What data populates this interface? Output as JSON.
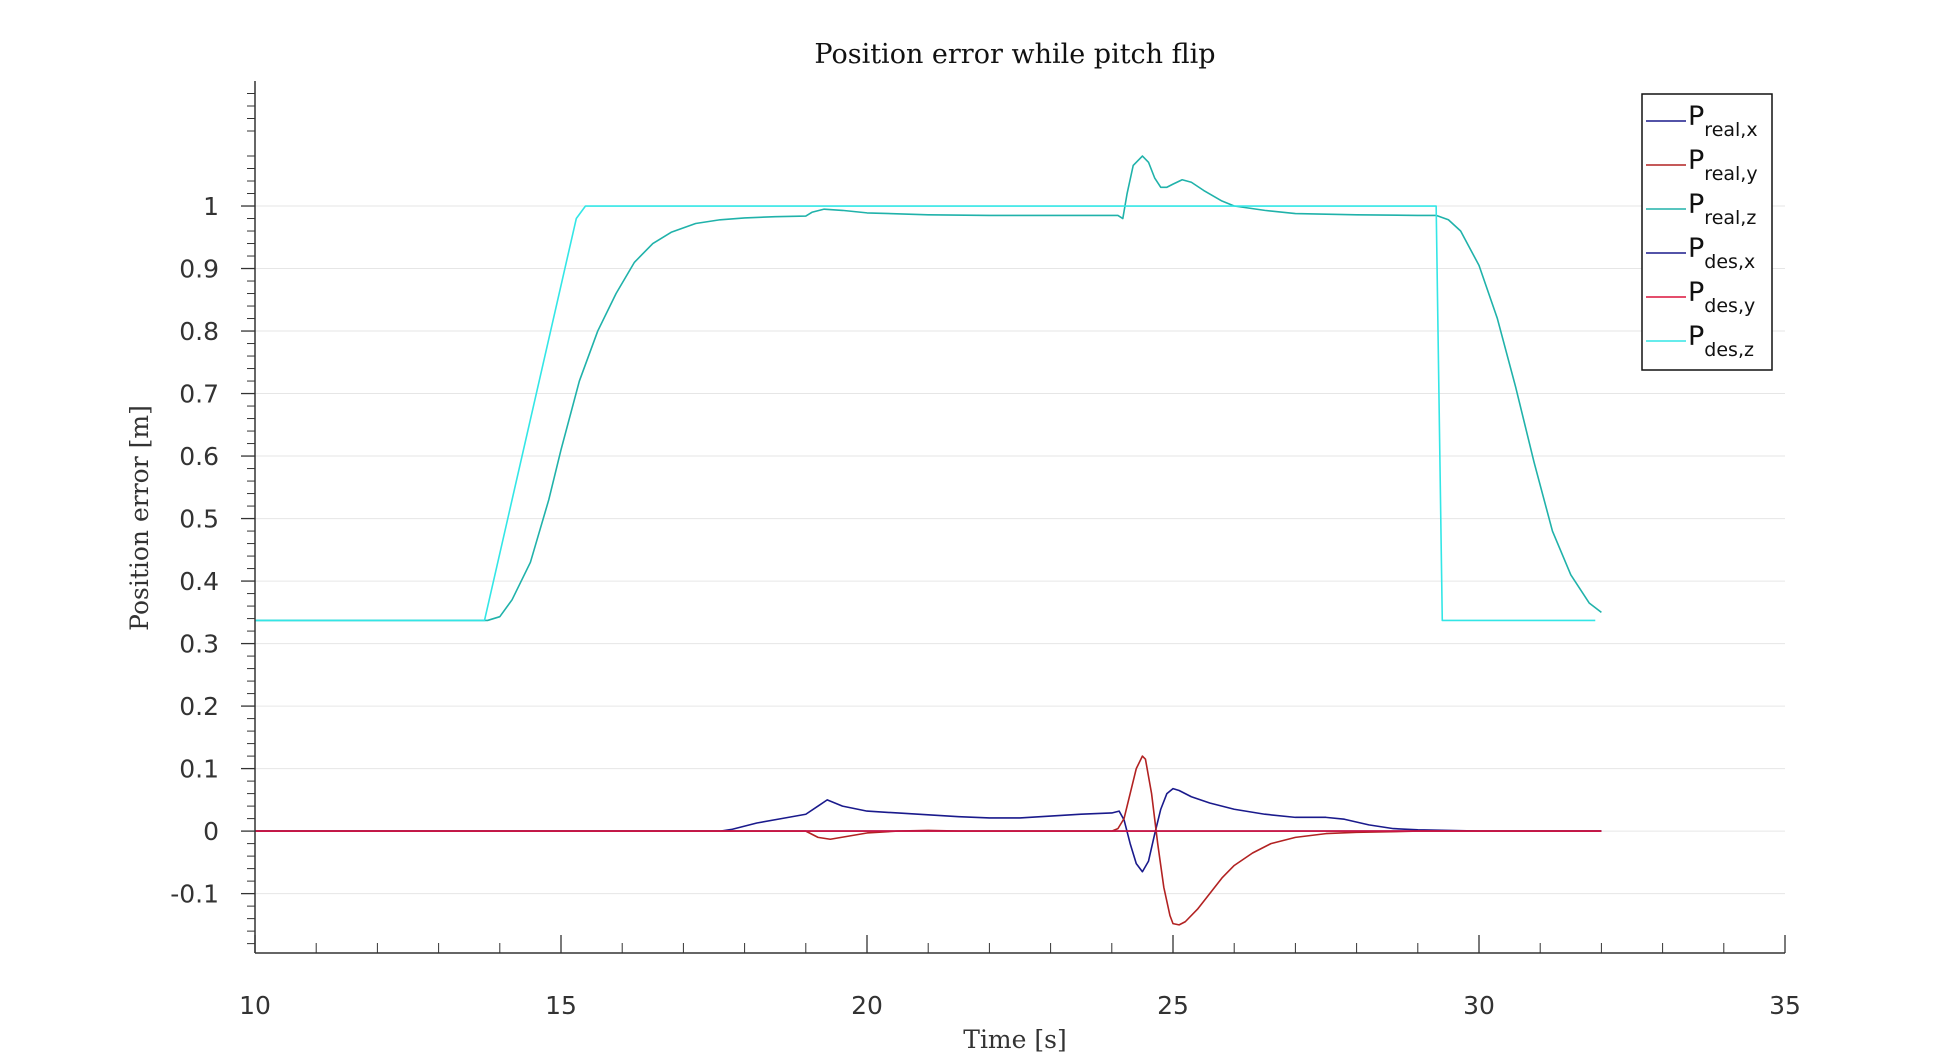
{
  "chart_data": {
    "type": "line",
    "title": "Position error while pitch flip",
    "xlabel": "Time [s]",
    "ylabel": "Position error [m]",
    "xlim": [
      10,
      35
    ],
    "ylim": [
      -0.195,
      1.2
    ],
    "xticks": [
      10,
      15,
      20,
      25,
      30,
      35
    ],
    "xtick_labels": [
      "10",
      "15",
      "20",
      "25",
      "30",
      "35"
    ],
    "yticks": [
      -0.1,
      0,
      0.1,
      0.2,
      0.3,
      0.4,
      0.5,
      0.6,
      0.7,
      0.8,
      0.9,
      1
    ],
    "ytick_labels": [
      "-0.1",
      "0",
      "0.1",
      "0.2",
      "0.3",
      "0.4",
      "0.5",
      "0.6",
      "0.7",
      "0.8",
      "0.9",
      "1"
    ],
    "grid": "horizontal",
    "legend_position": "top-right",
    "series": [
      {
        "name": "P",
        "subscript": "real,x",
        "color": "#1a1a8c",
        "x": [
          10,
          17.6,
          17.8,
          18.2,
          18.6,
          19.0,
          19.2,
          19.35,
          19.6,
          20.0,
          20.5,
          21.0,
          21.5,
          22.0,
          22.5,
          23.0,
          23.5,
          24.0,
          24.12,
          24.2,
          24.3,
          24.4,
          24.5,
          24.6,
          24.7,
          24.8,
          24.9,
          25.0,
          25.1,
          25.3,
          25.6,
          26.0,
          26.5,
          27.0,
          27.5,
          27.8,
          28.2,
          28.6,
          29.0,
          30.0,
          31.0,
          32.0
        ],
        "y": [
          0,
          0,
          0.003,
          0.013,
          0.02,
          0.027,
          0.04,
          0.05,
          0.04,
          0.032,
          0.029,
          0.026,
          0.023,
          0.021,
          0.021,
          0.024,
          0.027,
          0.029,
          0.032,
          0.018,
          -0.02,
          -0.052,
          -0.065,
          -0.048,
          -0.005,
          0.035,
          0.06,
          0.068,
          0.065,
          0.055,
          0.045,
          0.035,
          0.027,
          0.022,
          0.022,
          0.019,
          0.01,
          0.004,
          0.002,
          0,
          0,
          0
        ]
      },
      {
        "name": "P",
        "subscript": "real,y",
        "color": "#b22222",
        "x": [
          10,
          19.0,
          19.2,
          19.4,
          19.7,
          20.0,
          20.5,
          21.0,
          21.5,
          22.0,
          23.0,
          24.0,
          24.1,
          24.2,
          24.3,
          24.4,
          24.5,
          24.55,
          24.65,
          24.75,
          24.85,
          24.95,
          25.0,
          25.1,
          25.2,
          25.4,
          25.6,
          25.8,
          26.0,
          26.3,
          26.6,
          27.0,
          27.5,
          28.0,
          29.0,
          30.0,
          32.0
        ],
        "y": [
          0,
          0,
          -0.01,
          -0.013,
          -0.008,
          -0.003,
          0,
          0.001,
          0,
          0,
          0,
          0,
          0.004,
          0.02,
          0.06,
          0.1,
          0.12,
          0.115,
          0.06,
          -0.02,
          -0.09,
          -0.135,
          -0.148,
          -0.15,
          -0.145,
          -0.125,
          -0.1,
          -0.075,
          -0.055,
          -0.035,
          -0.02,
          -0.01,
          -0.004,
          -0.002,
          0,
          0,
          0
        ]
      },
      {
        "name": "P",
        "subscript": "real,z",
        "color": "#20b2aa",
        "x": [
          10,
          13.8,
          14.0,
          14.2,
          14.5,
          14.8,
          15.0,
          15.3,
          15.6,
          15.9,
          16.2,
          16.5,
          16.8,
          17.2,
          17.6,
          18.0,
          18.5,
          19.0,
          19.1,
          19.3,
          19.6,
          20.0,
          21.0,
          22.0,
          23.0,
          24.0,
          24.1,
          24.18,
          24.25,
          24.35,
          24.5,
          24.6,
          24.7,
          24.8,
          24.9,
          25.0,
          25.15,
          25.3,
          25.5,
          25.8,
          26.0,
          26.5,
          27.0,
          28.0,
          29.0,
          29.3,
          29.5,
          29.7,
          30.0,
          30.3,
          30.6,
          30.9,
          31.2,
          31.5,
          31.8,
          32.0
        ],
        "y": [
          0.337,
          0.337,
          0.343,
          0.37,
          0.43,
          0.53,
          0.61,
          0.72,
          0.8,
          0.86,
          0.91,
          0.94,
          0.958,
          0.972,
          0.978,
          0.981,
          0.983,
          0.984,
          0.99,
          0.995,
          0.993,
          0.989,
          0.986,
          0.985,
          0.985,
          0.985,
          0.985,
          0.98,
          1.02,
          1.065,
          1.08,
          1.07,
          1.045,
          1.03,
          1.03,
          1.035,
          1.042,
          1.038,
          1.025,
          1.008,
          1.0,
          0.993,
          0.988,
          0.986,
          0.985,
          0.985,
          0.978,
          0.96,
          0.905,
          0.82,
          0.71,
          0.59,
          0.48,
          0.41,
          0.365,
          0.35
        ]
      },
      {
        "name": "P",
        "subscript": "des,x",
        "color": "#1a1a8c",
        "x": [
          10,
          32.0
        ],
        "y": [
          0,
          0
        ]
      },
      {
        "name": "P",
        "subscript": "des,y",
        "color": "#dc143c",
        "x": [
          10,
          32.0
        ],
        "y": [
          0,
          0
        ]
      },
      {
        "name": "P",
        "subscript": "des,z",
        "color": "#33e6e6",
        "x": [
          10,
          13.75,
          15.25,
          15.4,
          29.3,
          29.4,
          31.9
        ],
        "y": [
          0.337,
          0.337,
          0.98,
          1.0,
          1.0,
          0.337,
          0.337
        ]
      }
    ]
  }
}
